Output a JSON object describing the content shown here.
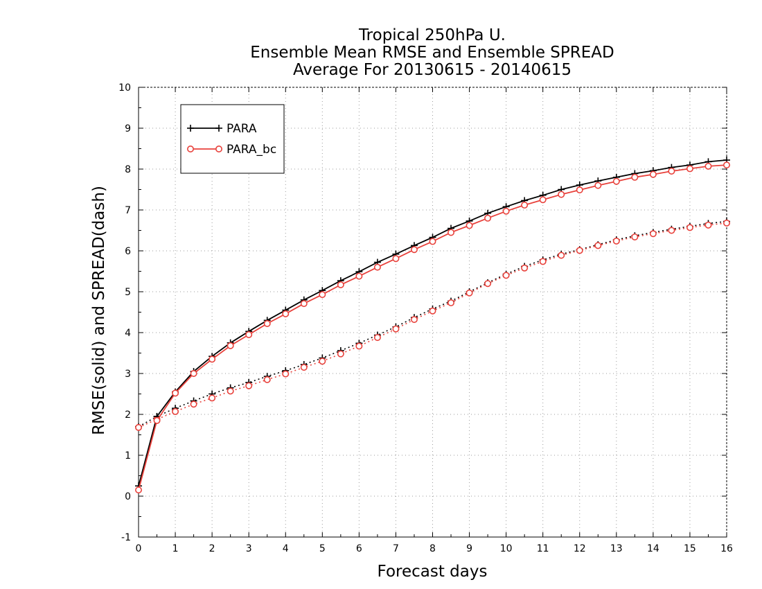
{
  "chart_data": {
    "type": "line",
    "title": [
      "Tropical 250hPa U.",
      "Ensemble Mean RMSE and Ensemble SPREAD",
      "Average For 20130615 - 20140615"
    ],
    "xlabel": "Forecast days",
    "ylabel": "RMSE(solid) and SPREAD(dash)",
    "xlim": [
      0,
      16
    ],
    "ylim": [
      -1,
      10
    ],
    "xticks": [
      "0",
      "1",
      "2",
      "3",
      "4",
      "5",
      "6",
      "7",
      "8",
      "9",
      "10",
      "11",
      "12",
      "13",
      "14",
      "15",
      "16"
    ],
    "yticks": [
      "-1",
      "0",
      "1",
      "2",
      "3",
      "4",
      "5",
      "6",
      "7",
      "8",
      "9",
      "10"
    ],
    "grid": true,
    "legend_position": "top-left",
    "x": [
      0,
      0.5,
      1,
      1.5,
      2,
      2.5,
      3,
      3.5,
      4,
      4.5,
      5,
      5.5,
      6,
      6.5,
      7,
      7.5,
      8,
      8.5,
      9,
      9.5,
      10,
      10.5,
      11,
      11.5,
      12,
      12.5,
      13,
      13.5,
      14,
      14.5,
      15,
      15.5,
      16
    ],
    "series": [
      {
        "name": "PARA",
        "metric": "RMSE",
        "style": "solid",
        "color": "#000000",
        "marker": "plus",
        "values": [
          0.25,
          1.95,
          2.55,
          3.05,
          3.42,
          3.75,
          4.03,
          4.3,
          4.55,
          4.8,
          5.03,
          5.27,
          5.49,
          5.72,
          5.92,
          6.13,
          6.33,
          6.55,
          6.73,
          6.92,
          7.08,
          7.23,
          7.36,
          7.5,
          7.61,
          7.71,
          7.8,
          7.89,
          7.96,
          8.04,
          8.1,
          8.18,
          8.22
        ]
      },
      {
        "name": "PARA_bc",
        "metric": "RMSE",
        "style": "solid",
        "color": "#e8413b",
        "marker": "circle",
        "values": [
          0.15,
          1.85,
          2.52,
          3.0,
          3.35,
          3.68,
          3.95,
          4.22,
          4.46,
          4.71,
          4.93,
          5.17,
          5.38,
          5.6,
          5.81,
          6.03,
          6.23,
          6.45,
          6.62,
          6.8,
          6.97,
          7.12,
          7.25,
          7.38,
          7.49,
          7.6,
          7.7,
          7.8,
          7.87,
          7.95,
          8.01,
          8.07,
          8.1
        ]
      },
      {
        "name": "PARA",
        "metric": "SPREAD",
        "style": "dash",
        "color": "#000000",
        "marker": "plus",
        "values": [
          1.7,
          1.95,
          2.15,
          2.33,
          2.5,
          2.65,
          2.78,
          2.93,
          3.07,
          3.22,
          3.38,
          3.56,
          3.74,
          3.94,
          4.14,
          4.37,
          4.58,
          4.77,
          5.0,
          5.22,
          5.43,
          5.62,
          5.78,
          5.92,
          6.03,
          6.15,
          6.27,
          6.37,
          6.45,
          6.53,
          6.6,
          6.67,
          6.72
        ]
      },
      {
        "name": "PARA_bc",
        "metric": "SPREAD",
        "style": "dash",
        "color": "#e8413b",
        "marker": "circle",
        "values": [
          1.68,
          1.88,
          2.07,
          2.25,
          2.4,
          2.57,
          2.7,
          2.85,
          2.99,
          3.15,
          3.3,
          3.48,
          3.67,
          3.88,
          4.09,
          4.32,
          4.53,
          4.73,
          4.97,
          5.2,
          5.4,
          5.58,
          5.74,
          5.89,
          6.01,
          6.13,
          6.24,
          6.34,
          6.42,
          6.5,
          6.57,
          6.63,
          6.68
        ]
      }
    ],
    "legend": [
      {
        "label": "PARA",
        "color": "#000000",
        "marker": "plus"
      },
      {
        "label": "PARA_bc",
        "color": "#e8413b",
        "marker": "circle"
      }
    ]
  }
}
